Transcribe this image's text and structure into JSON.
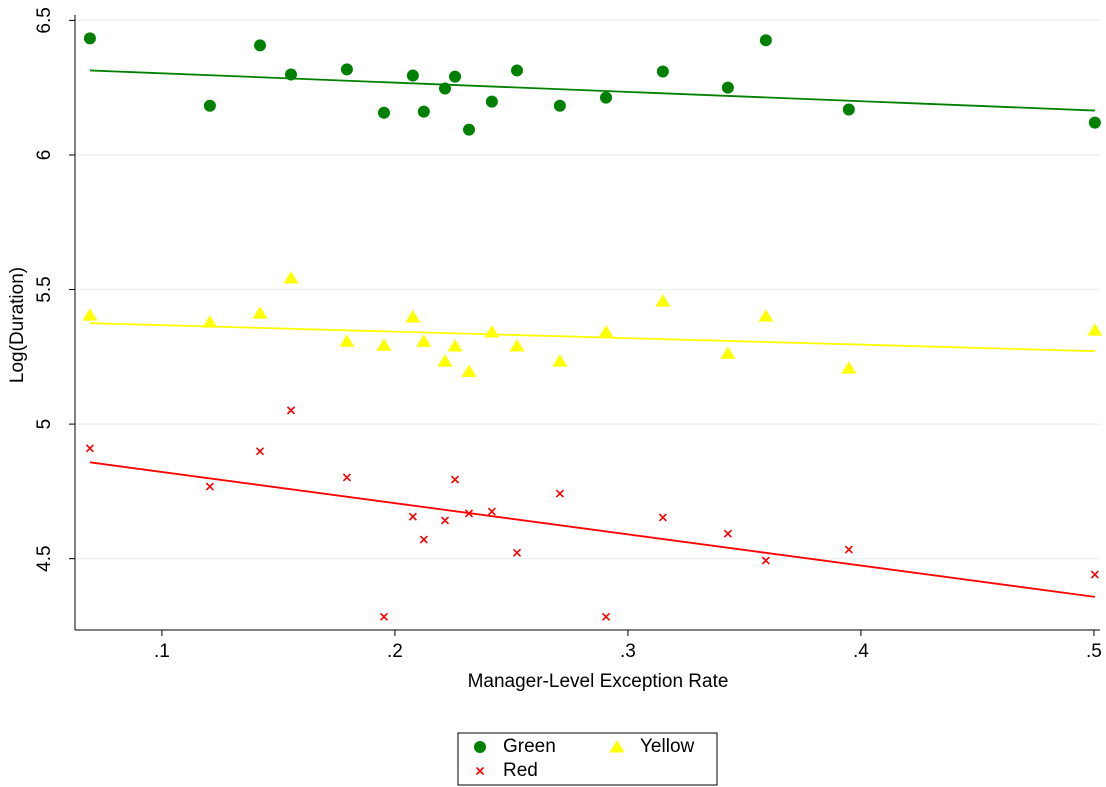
{
  "chart_data": {
    "type": "scatter",
    "x_label": "Manager-Level Exception Rate",
    "y_label": "Log(Duration)",
    "x": [
      0.0691,
      0.1206,
      0.1421,
      0.1554,
      0.1794,
      0.1953,
      0.2077,
      0.2124,
      0.2215,
      0.2258,
      0.2318,
      0.2416,
      0.2524,
      0.2708,
      0.2906,
      0.315,
      0.3429,
      0.3592,
      0.3948,
      0.5004
    ],
    "series": [
      {
        "name": "Green",
        "color": "#008000",
        "marker": "circle",
        "values": [
          6.433,
          6.183,
          6.407,
          6.299,
          6.318,
          6.157,
          6.295,
          6.161,
          6.247,
          6.291,
          6.094,
          6.198,
          6.314,
          6.183,
          6.213,
          6.31,
          6.25,
          6.426,
          6.169,
          6.12
        ],
        "fit_x": [
          0.0691,
          0.5004
        ],
        "fit_values": [
          6.314,
          6.165
        ]
      },
      {
        "name": "Yellow",
        "color": "#ffff00",
        "marker": "triangle",
        "values": [
          5.405,
          5.379,
          5.412,
          5.543,
          5.308,
          5.293,
          5.398,
          5.308,
          5.234,
          5.29,
          5.196,
          5.342,
          5.29,
          5.234,
          5.342,
          5.457,
          5.263,
          5.401,
          5.208,
          5.349
        ],
        "fit_x": [
          0.0691,
          0.5004
        ],
        "fit_values": [
          5.375,
          5.271
        ]
      },
      {
        "name": "Red",
        "color": "#ff0000",
        "marker": "cross",
        "values": [
          4.91,
          4.768,
          4.899,
          5.051,
          4.802,
          4.284,
          4.656,
          4.571,
          4.642,
          4.794,
          4.668,
          4.675,
          4.522,
          4.742,
          4.284,
          4.653,
          4.593,
          4.493,
          4.534,
          4.441
        ],
        "fit_x": [
          0.0691,
          0.5004
        ],
        "fit_values": [
          4.858,
          4.358
        ]
      }
    ],
    "xlim": [
      0.0627,
      0.5026
    ],
    "ylim": [
      4.235,
      6.52
    ],
    "xticks": [
      {
        "value": 0.1,
        "label": ".1"
      },
      {
        "value": 0.2,
        "label": ".2"
      },
      {
        "value": 0.3,
        "label": ".3"
      },
      {
        "value": 0.4,
        "label": ".4"
      },
      {
        "value": 0.5,
        "label": ".5"
      }
    ],
    "yticks": [
      4.5,
      5,
      5.5,
      6,
      6.5
    ],
    "grid": true,
    "legend": "bottom"
  }
}
